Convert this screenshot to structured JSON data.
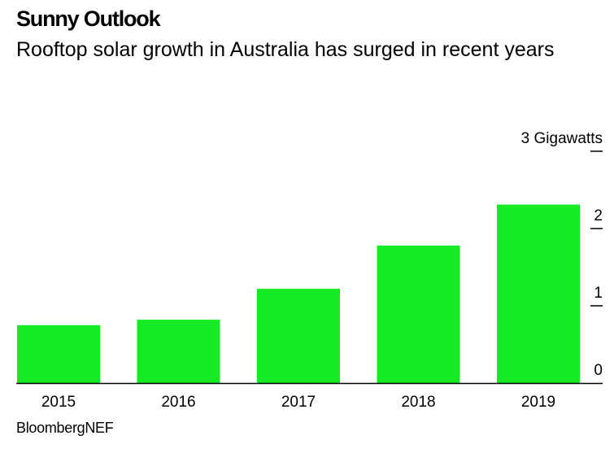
{
  "title": "Sunny Outlook",
  "subtitle": "Rooftop solar growth in Australia has surged in recent years",
  "source": "BloombergNEF",
  "colors": {
    "bar": "#16ea24",
    "axis": "#000000",
    "text": "#000000"
  },
  "chart_data": {
    "type": "bar",
    "title": "Sunny Outlook",
    "subtitle": "Rooftop solar growth in Australia has surged in recent years",
    "categories": [
      "2015",
      "2016",
      "2017",
      "2018",
      "2019"
    ],
    "values": [
      0.75,
      0.82,
      1.22,
      1.78,
      2.31
    ],
    "xlabel": "",
    "ylabel": "Gigawatts",
    "ylim": [
      0,
      3
    ],
    "yticks": [
      {
        "value": 3,
        "label": "3 Gigawatts"
      },
      {
        "value": 2,
        "label": "2"
      },
      {
        "value": 1,
        "label": "1"
      },
      {
        "value": 0,
        "label": "0"
      }
    ],
    "grid": false,
    "yaxis_side": "right",
    "legend": "none"
  }
}
